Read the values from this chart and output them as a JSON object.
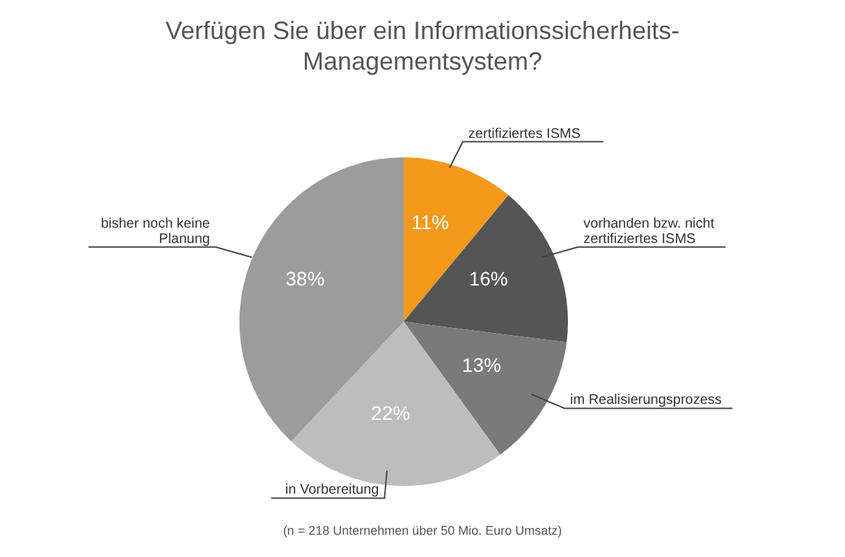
{
  "chart_data": {
    "type": "pie",
    "title": "Verfügen Sie über ein Informationssicherheits-\nManagementsystem?",
    "categories": [
      "zertifiziertes ISMS",
      "vorhanden bzw. nicht\nzertifiziertes ISMS",
      "im Realisierungsprozess",
      "in Vorbereitung",
      "bisher noch keine\nPlanung"
    ],
    "values": [
      11,
      16,
      13,
      22,
      38
    ],
    "value_labels": [
      "11%",
      "16%",
      "13%",
      "22%",
      "38%"
    ],
    "colors": [
      "#f5991c",
      "#555555",
      "#7a7a7a",
      "#bdbdbd",
      "#9c9c9c"
    ],
    "annotations": [
      "(n = 218 Unternehmen über 50 Mio. Euro Umsatz)"
    ]
  }
}
